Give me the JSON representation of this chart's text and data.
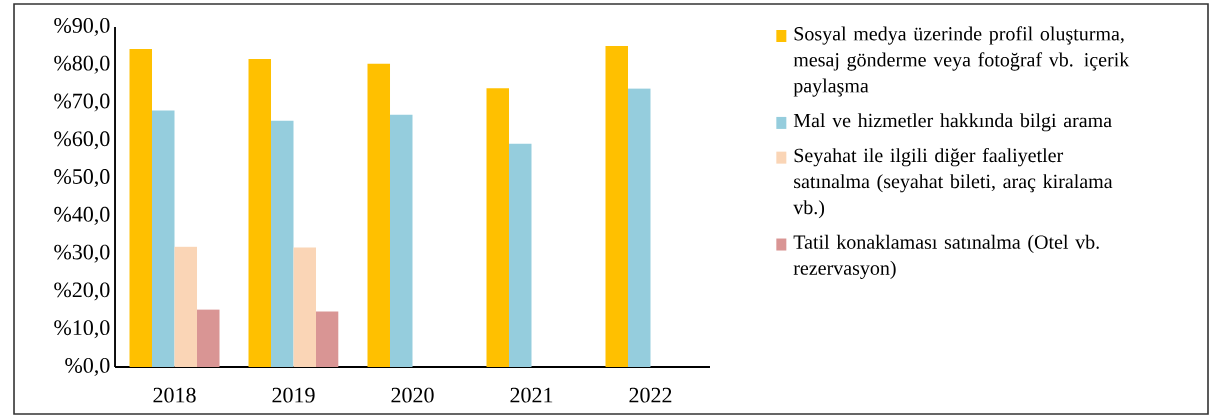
{
  "chart_data": {
    "type": "bar",
    "categories": [
      "2018",
      "2019",
      "2020",
      "2021",
      "2022"
    ],
    "series": [
      {
        "name": "Sosyal medya üzerinde profil oluşturma, mesaj gönderme veya fotoğraf vb. içerik paylaşma",
        "color": "#ffc000",
        "values": [
          84.2,
          81.5,
          80.3,
          73.8,
          85.0
        ]
      },
      {
        "name": "Mal ve hizmetler hakkında bilgi arama",
        "color": "#95cddd",
        "values": [
          67.9,
          65.2,
          66.8,
          59.1,
          73.7
        ]
      },
      {
        "name": "Seyahat ile ilgili diğer faaliyetler satınalma (seyahat bileti, araç kiralama vb.)",
        "color": "#fad5b6",
        "values": [
          31.8,
          31.6,
          null,
          null,
          null
        ]
      },
      {
        "name": "Tatil konaklaması satınalma (Otel vb. rezervasyon)",
        "color": "#d99594",
        "values": [
          15.2,
          14.7,
          null,
          null,
          null
        ]
      }
    ],
    "ylim": [
      0,
      90
    ],
    "yticks": [
      {
        "value": 0,
        "label": "%0,0"
      },
      {
        "value": 10,
        "label": "%10,0"
      },
      {
        "value": 20,
        "label": "%20,0"
      },
      {
        "value": 30,
        "label": "%30,0"
      },
      {
        "value": 40,
        "label": "%40,0"
      },
      {
        "value": 50,
        "label": "%50,0"
      },
      {
        "value": 60,
        "label": "%60,0"
      },
      {
        "value": 70,
        "label": "%70,0"
      },
      {
        "value": 80,
        "label": "%80,0"
      },
      {
        "value": 90,
        "label": "%90,0"
      }
    ],
    "grid": false,
    "legend": "right"
  }
}
